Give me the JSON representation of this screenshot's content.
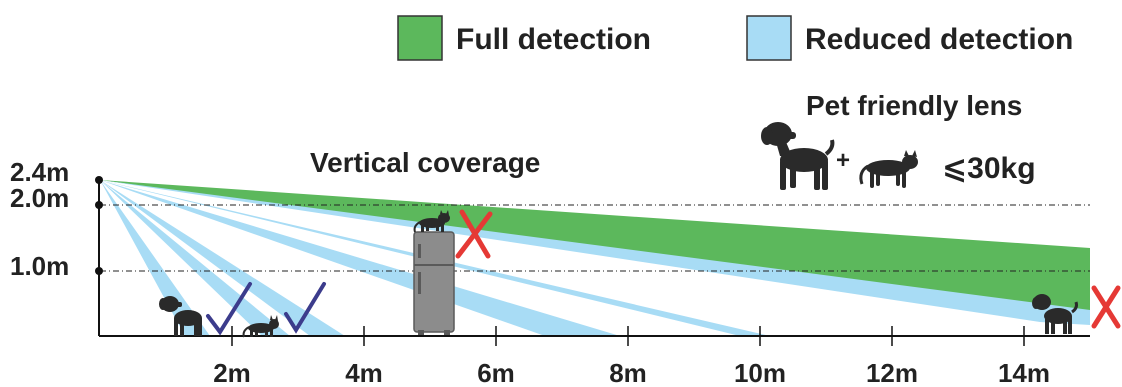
{
  "legend": {
    "items": [
      {
        "label": "Full detection",
        "color": "#5cb85c"
      },
      {
        "label": "Reduced detection",
        "color": "#a8dcf5"
      }
    ]
  },
  "title": "Vertical coverage",
  "pet_lens": {
    "title": "Pet friendly lens",
    "plus": "+",
    "limit": "⩽30kg",
    "icons": [
      "dog-icon",
      "cat-icon"
    ]
  },
  "height_labels": [
    "2.4m",
    "2.0m",
    "1.0m"
  ],
  "distance_labels": [
    "2m",
    "4m",
    "6m",
    "8m",
    "10m",
    "12m",
    "14m"
  ],
  "colors": {
    "full": "#5cb85c",
    "reduced": "#a8dcf5",
    "axis": "#111111",
    "fridge": "#8c8c8c",
    "check": "#3c3c8c",
    "cross": "#e53935",
    "pet": "#2a2a2a"
  },
  "markers": [
    {
      "kind": "check-icon"
    },
    {
      "kind": "check-icon"
    },
    {
      "kind": "cross-icon"
    },
    {
      "kind": "cross-icon"
    }
  ]
}
